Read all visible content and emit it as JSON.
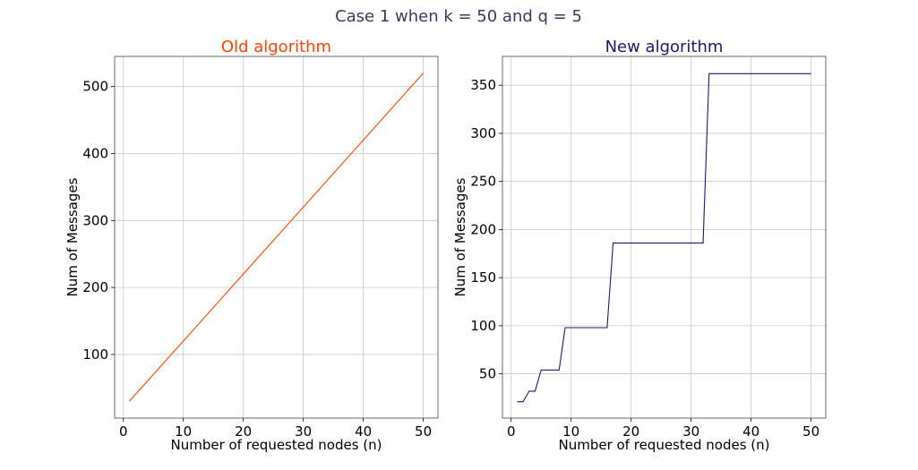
{
  "suptitle": "Case 1 when k = 50 and q = 5",
  "chart_data": [
    {
      "type": "line",
      "title": "Old algorithm",
      "xlabel": "Number of requested nodes (n)",
      "ylabel": "Num of Messages",
      "xlim": [
        -1.45,
        52.45
      ],
      "ylim": [
        5,
        545
      ],
      "xticks": [
        0,
        10,
        20,
        30,
        40,
        50
      ],
      "yticks": [
        100,
        200,
        300,
        400,
        500
      ],
      "grid": true,
      "color": "#ff4500",
      "series": [
        {
          "x": [
            1,
            50
          ],
          "y": [
            30,
            520
          ]
        }
      ]
    },
    {
      "type": "line",
      "title": "New algorithm",
      "xlabel": "Number of requested nodes (n)",
      "ylabel": "Num of Messages",
      "xlim": [
        -1.45,
        52.45
      ],
      "ylim": [
        4,
        380
      ],
      "xticks": [
        0,
        10,
        20,
        30,
        40,
        50
      ],
      "yticks": [
        50,
        100,
        150,
        200,
        250,
        300,
        350
      ],
      "grid": true,
      "color": "#191970",
      "series": [
        {
          "x": [
            1,
            2,
            3,
            4,
            5,
            6,
            7,
            8,
            9,
            10,
            11,
            12,
            13,
            14,
            15,
            16,
            17,
            18,
            19,
            20,
            21,
            22,
            23,
            24,
            25,
            26,
            27,
            28,
            29,
            30,
            31,
            32,
            33,
            34,
            35,
            36,
            37,
            38,
            39,
            40,
            41,
            42,
            43,
            44,
            45,
            46,
            47,
            48,
            49,
            50
          ],
          "y": [
            21,
            21,
            32,
            32,
            54,
            54,
            54,
            54,
            98,
            98,
            98,
            98,
            98,
            98,
            98,
            98,
            186,
            186,
            186,
            186,
            186,
            186,
            186,
            186,
            186,
            186,
            186,
            186,
            186,
            186,
            186,
            186,
            362,
            362,
            362,
            362,
            362,
            362,
            362,
            362,
            362,
            362,
            362,
            362,
            362,
            362,
            362,
            362,
            362,
            362
          ]
        }
      ]
    }
  ]
}
